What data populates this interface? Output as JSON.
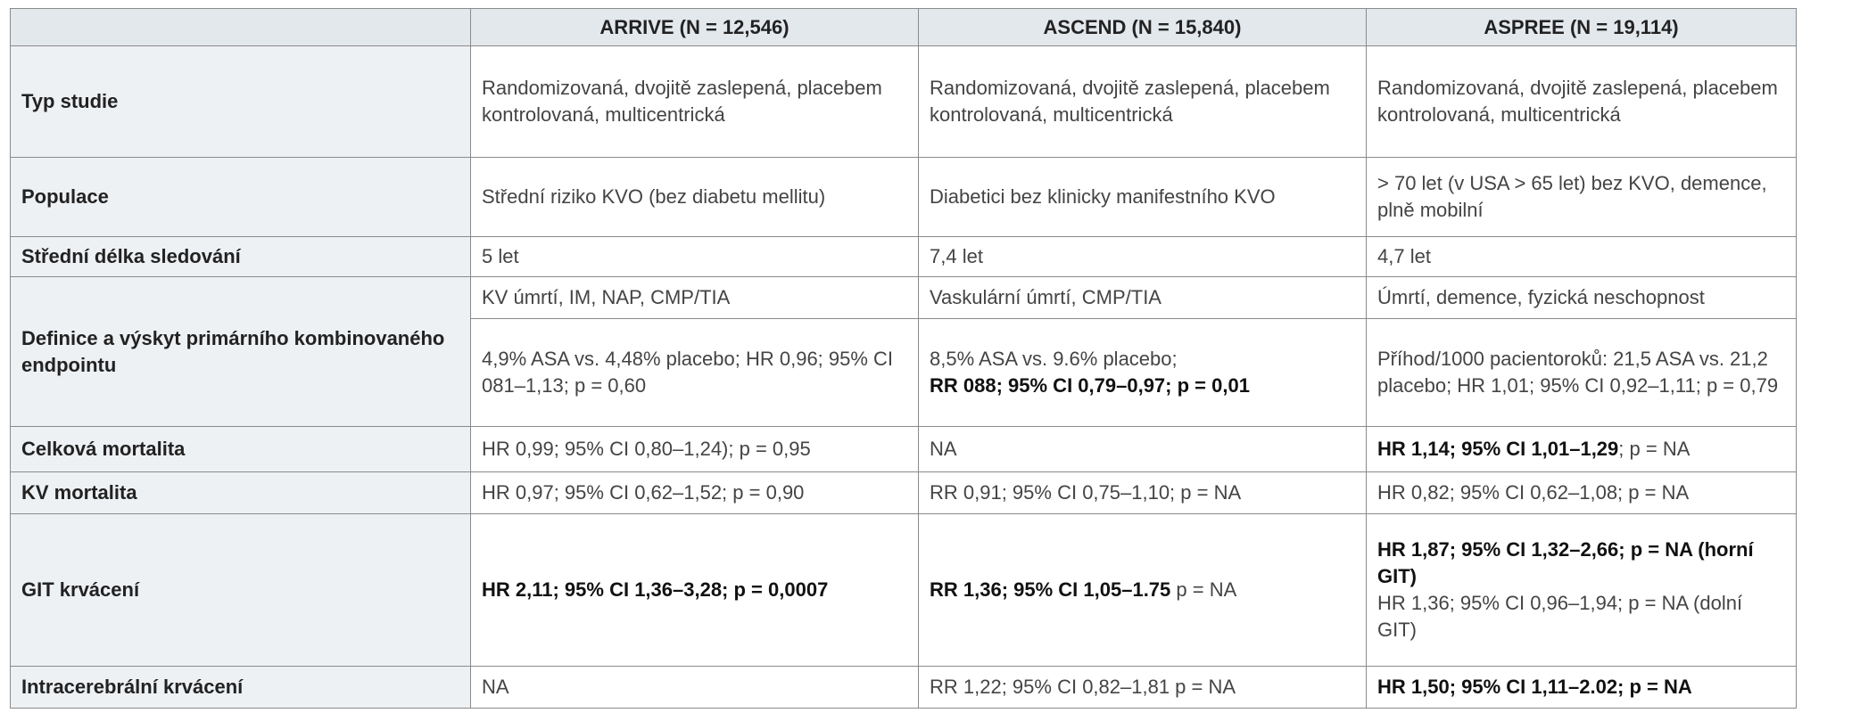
{
  "table": {
    "header": [
      "ARRIVE (N = 12,546)",
      "ASCEND (N = 15,840)",
      "ASPREE (N = 19,114)"
    ],
    "rows": [
      {
        "label": "Typ studie",
        "cells": [
          [
            [
              {
                "text": "Randomizovaná, dvojitě zaslepená, placebem kontrolovaná, multicentrická",
                "bold": false
              }
            ]
          ],
          [
            [
              {
                "text": "Randomizovaná, dvojitě zaslepená, placebem kontrolovaná, multicentrická",
                "bold": false
              }
            ]
          ],
          [
            [
              {
                "text": "Randomizovaná, dvojitě zaslepená, placebem kontrolovaná, multicentrická",
                "bold": false
              }
            ]
          ]
        ]
      },
      {
        "label": "Populace",
        "cells": [
          [
            [
              {
                "text": "Střední riziko KVO (bez diabetu mellitu)",
                "bold": false
              }
            ]
          ],
          [
            [
              {
                "text": "Diabetici bez klinicky manifestního KVO",
                "bold": false
              }
            ]
          ],
          [
            [
              {
                "text": "> 70 let (v USA > 65 let) bez KVO, demence, plně mobilní",
                "bold": false
              }
            ]
          ]
        ]
      },
      {
        "label": "Střední délka sledování",
        "cells": [
          [
            [
              {
                "text": "5 let",
                "bold": false
              }
            ]
          ],
          [
            [
              {
                "text": "7,4 let",
                "bold": false
              }
            ]
          ],
          [
            [
              {
                "text": "4,7 let",
                "bold": false
              }
            ]
          ]
        ]
      },
      {
        "label": "Definice a výskyt primárního kombinovaného endpointu",
        "cells": [
          [
            [
              {
                "text": "KV úmrtí, IM, NAP, CMP/TIA",
                "bold": false
              }
            ]
          ],
          [
            [
              {
                "text": "Vaskulární úmrtí, CMP/TIA",
                "bold": false
              }
            ]
          ],
          [
            [
              {
                "text": "Úmrtí, demence, fyzická neschopnost",
                "bold": false
              }
            ]
          ]
        ]
      },
      {
        "cells": [
          [
            [
              {
                "text": "4,9% ASA vs. 4,48% placebo; HR 0,96; 95% CI 081–1,13; p = 0,60",
                "bold": false
              }
            ]
          ],
          [
            [
              {
                "text": "8,5% ASA vs. 9.6% placebo;",
                "bold": false
              }
            ],
            [
              {
                "text": "RR 088; 95% CI 0,79–0,97; p = 0,01",
                "bold": true
              }
            ]
          ],
          [
            [
              {
                "text": "Příhod/1000 pacientoroků: 21,5 ASA vs. 21,2 placebo; HR 1,01; 95% CI 0,92–1,11; p = 0,79",
                "bold": false
              }
            ]
          ]
        ]
      },
      {
        "label": "Celková mortalita",
        "cells": [
          [
            [
              {
                "text": "HR 0,99; 95% CI 0,80–1,24); p = 0,95",
                "bold": false
              }
            ]
          ],
          [
            [
              {
                "text": "NA",
                "bold": false
              }
            ]
          ],
          [
            [
              {
                "text": "HR 1,14; 95% CI 1,01–1,29",
                "bold": true
              },
              {
                "text": "; p = NA",
                "bold": false
              }
            ]
          ]
        ]
      },
      {
        "label": "KV mortalita",
        "cells": [
          [
            [
              {
                "text": "HR 0,97; 95% CI 0,62–1,52; p = 0,90",
                "bold": false
              }
            ]
          ],
          [
            [
              {
                "text": "RR 0,91; 95% CI 0,75–1,10; p = NA",
                "bold": false
              }
            ]
          ],
          [
            [
              {
                "text": "HR 0,82; 95% CI 0,62–1,08; p = NA",
                "bold": false
              }
            ]
          ]
        ]
      },
      {
        "label": "GIT krvácení",
        "cells": [
          [
            [
              {
                "text": "HR 2,11; 95% CI 1,36–3,28; p = 0,0007",
                "bold": true
              }
            ]
          ],
          [
            [
              {
                "text": "RR 1,36; 95% CI 1,05–1.75",
                "bold": true
              },
              {
                "text": " p = NA",
                "bold": false
              }
            ]
          ],
          [
            [
              {
                "text": "HR 1,87; 95% CI 1,32–2,66; p = NA (horní GIT)",
                "bold": true
              }
            ],
            [
              {
                "text": "HR 1,36; 95% CI 0,96–1,94; p = NA (dolní GIT)",
                "bold": false
              }
            ]
          ]
        ]
      },
      {
        "label": "Intracerebrální krvácení",
        "cells": [
          [
            [
              {
                "text": "NA",
                "bold": false
              }
            ]
          ],
          [
            [
              {
                "text": "RR 1,22; 95% CI 0,82–1,81 p = NA",
                "bold": false
              }
            ]
          ],
          [
            [
              {
                "text": "HR 1,50; 95% CI 1,11–2.02; p = NA",
                "bold": true
              }
            ]
          ]
        ]
      }
    ]
  }
}
